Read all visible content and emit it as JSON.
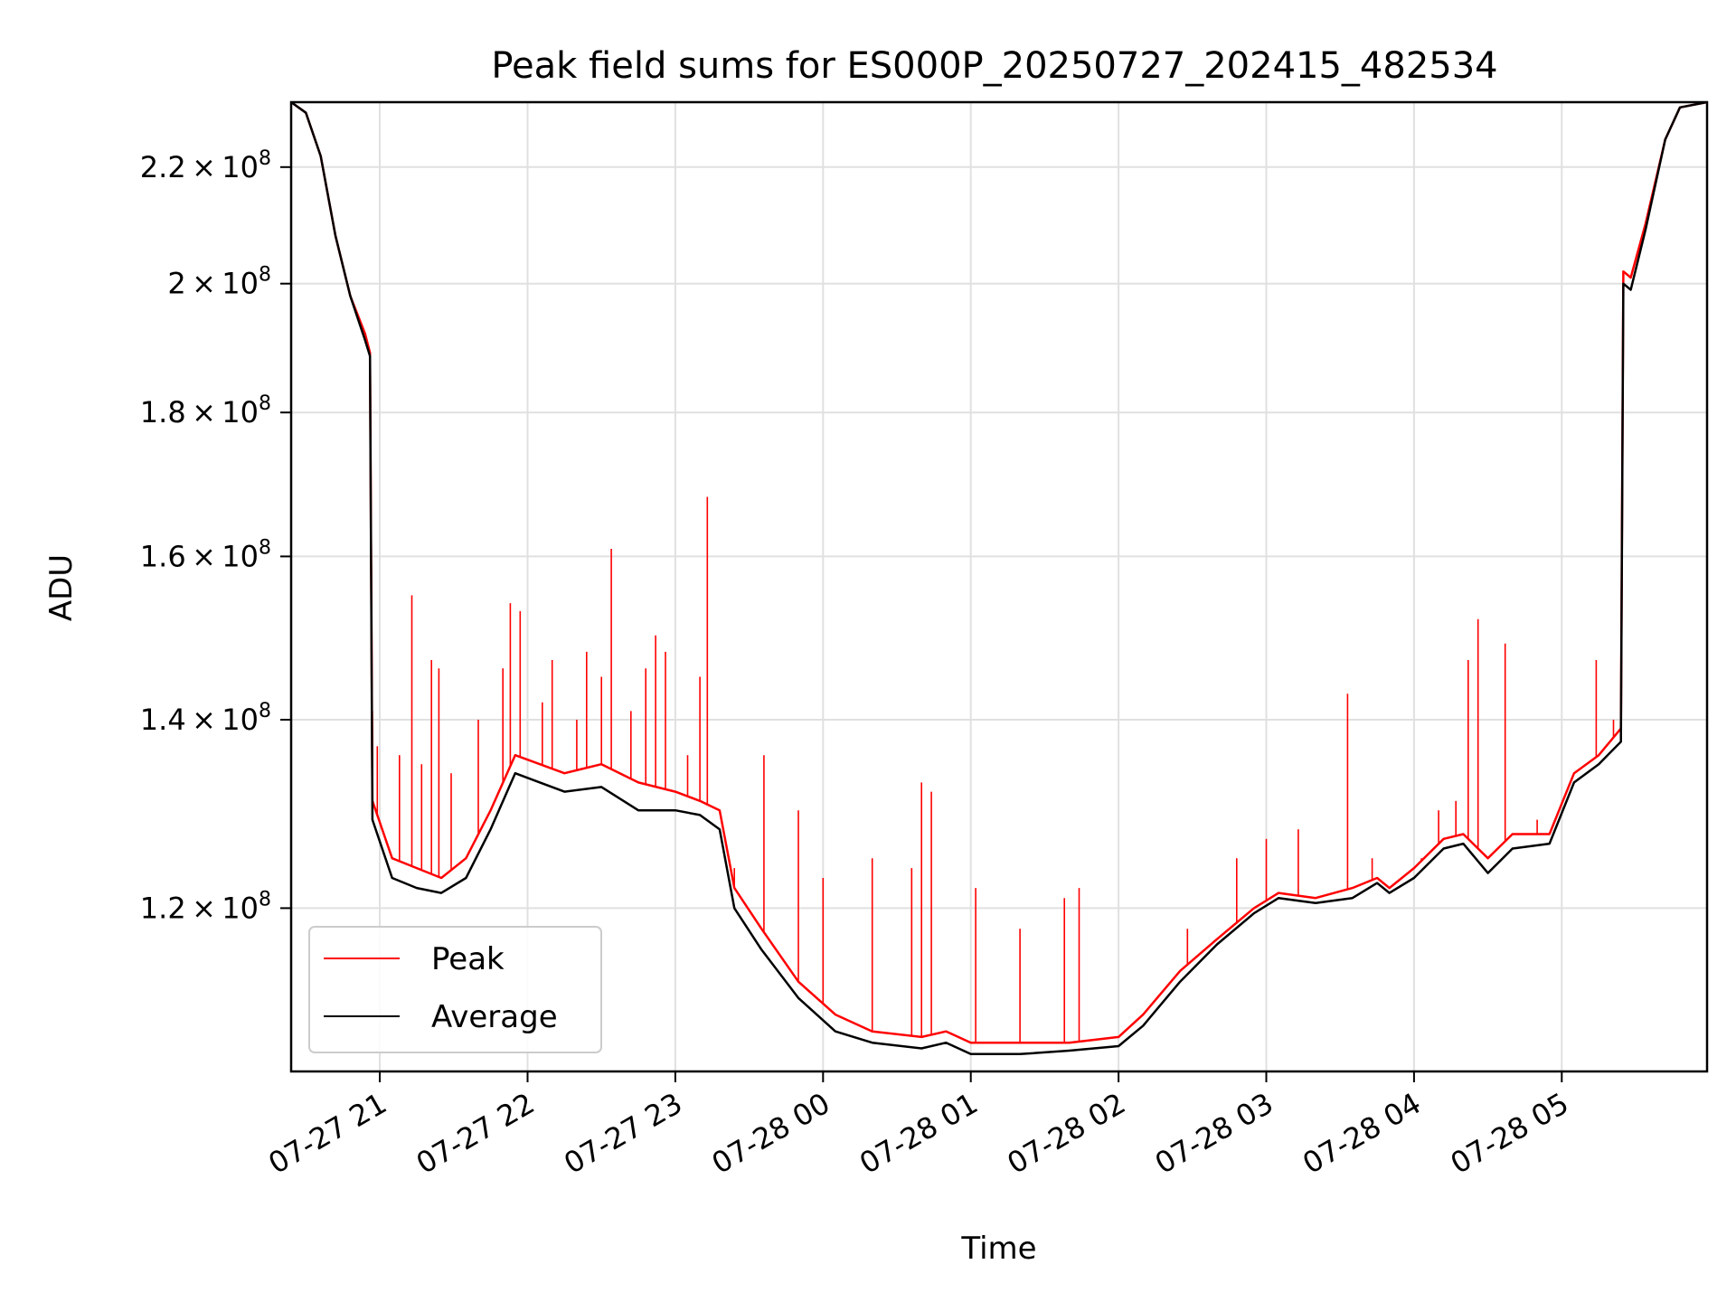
{
  "chart_data": {
    "type": "line",
    "title": "Peak field sums for ES000P_20250727_202415_482534",
    "xlabel": "Time",
    "ylabel": "ADU",
    "yscale": "log",
    "grid": true,
    "legend_position": "lower-left",
    "xlim": [
      "2025-07-27 20:24",
      "2025-07-28 05:59"
    ],
    "ylim": [
      105000000,
      232000000
    ],
    "x_ticks": [
      {
        "t": "2025-07-27 21:00",
        "label": "07-27 21"
      },
      {
        "t": "2025-07-27 22:00",
        "label": "07-27 22"
      },
      {
        "t": "2025-07-27 23:00",
        "label": "07-27 23"
      },
      {
        "t": "2025-07-28 00:00",
        "label": "07-28 00"
      },
      {
        "t": "2025-07-28 01:00",
        "label": "07-28 01"
      },
      {
        "t": "2025-07-28 02:00",
        "label": "07-28 02"
      },
      {
        "t": "2025-07-28 03:00",
        "label": "07-28 03"
      },
      {
        "t": "2025-07-28 04:00",
        "label": "07-28 04"
      },
      {
        "t": "2025-07-28 05:00",
        "label": "07-28 05"
      }
    ],
    "y_ticks": [
      {
        "value": 120000000,
        "mantissa": "1.2",
        "exponent": "8"
      },
      {
        "value": 140000000,
        "mantissa": "1.4",
        "exponent": "8"
      },
      {
        "value": 160000000,
        "mantissa": "1.6",
        "exponent": "8"
      },
      {
        "value": 180000000,
        "mantissa": "1.8",
        "exponent": "8"
      },
      {
        "value": 200000000,
        "mantissa": "2",
        "exponent": "8"
      },
      {
        "value": 220000000,
        "mantissa": "2.2",
        "exponent": "8"
      }
    ],
    "series": [
      {
        "name": "Peak",
        "color": "#ff0000",
        "points": [
          [
            "2025-07-27 20:24",
            232000000
          ],
          [
            "2025-07-27 20:30",
            230000000
          ],
          [
            "2025-07-27 20:36",
            222000000
          ],
          [
            "2025-07-27 20:42",
            208000000
          ],
          [
            "2025-07-27 20:48",
            198000000
          ],
          [
            "2025-07-27 20:54",
            192000000
          ],
          [
            "2025-07-27 20:56",
            189000000
          ],
          [
            "2025-07-27 20:57",
            131000000
          ],
          [
            "2025-07-27 21:05",
            125000000
          ],
          [
            "2025-07-27 21:15",
            124000000
          ],
          [
            "2025-07-27 21:25",
            123000000
          ],
          [
            "2025-07-27 21:35",
            125000000
          ],
          [
            "2025-07-27 21:45",
            130000000
          ],
          [
            "2025-07-27 21:55",
            136000000
          ],
          [
            "2025-07-27 22:05",
            135000000
          ],
          [
            "2025-07-27 22:15",
            134000000
          ],
          [
            "2025-07-27 22:30",
            135000000
          ],
          [
            "2025-07-27 22:45",
            133000000
          ],
          [
            "2025-07-27 23:00",
            132000000
          ],
          [
            "2025-07-27 23:10",
            131000000
          ],
          [
            "2025-07-27 23:18",
            130000000
          ],
          [
            "2025-07-27 23:24",
            122000000
          ],
          [
            "2025-07-27 23:35",
            118000000
          ],
          [
            "2025-07-27 23:50",
            113000000
          ],
          [
            "2025-07-28 00:05",
            110000000
          ],
          [
            "2025-07-28 00:20",
            108500000
          ],
          [
            "2025-07-28 00:40",
            108000000
          ],
          [
            "2025-07-28 00:50",
            108500000
          ],
          [
            "2025-07-28 01:00",
            107500000
          ],
          [
            "2025-07-28 01:20",
            107500000
          ],
          [
            "2025-07-28 01:40",
            107500000
          ],
          [
            "2025-07-28 02:00",
            108000000
          ],
          [
            "2025-07-28 02:10",
            110000000
          ],
          [
            "2025-07-28 02:25",
            114000000
          ],
          [
            "2025-07-28 02:40",
            117000000
          ],
          [
            "2025-07-28 02:55",
            120000000
          ],
          [
            "2025-07-28 03:05",
            121500000
          ],
          [
            "2025-07-28 03:20",
            121000000
          ],
          [
            "2025-07-28 03:35",
            122000000
          ],
          [
            "2025-07-28 03:45",
            123000000
          ],
          [
            "2025-07-28 03:50",
            122000000
          ],
          [
            "2025-07-28 04:00",
            124000000
          ],
          [
            "2025-07-28 04:12",
            127000000
          ],
          [
            "2025-07-28 04:20",
            127500000
          ],
          [
            "2025-07-28 04:30",
            125000000
          ],
          [
            "2025-07-28 04:40",
            127500000
          ],
          [
            "2025-07-28 04:55",
            127500000
          ],
          [
            "2025-07-28 05:05",
            134000000
          ],
          [
            "2025-07-28 05:15",
            136000000
          ],
          [
            "2025-07-28 05:24",
            139000000
          ],
          [
            "2025-07-28 05:25",
            202000000
          ],
          [
            "2025-07-28 05:28",
            201000000
          ],
          [
            "2025-07-28 05:34",
            210000000
          ],
          [
            "2025-07-28 05:42",
            225000000
          ],
          [
            "2025-07-28 05:48",
            231000000
          ],
          [
            "2025-07-28 05:59",
            232000000
          ]
        ],
        "spikes": [
          [
            "2025-07-27 20:57",
            141000000
          ],
          [
            "2025-07-27 20:59",
            137000000
          ],
          [
            "2025-07-27 21:08",
            136000000
          ],
          [
            "2025-07-27 21:13",
            155000000
          ],
          [
            "2025-07-27 21:17",
            135000000
          ],
          [
            "2025-07-27 21:21",
            147000000
          ],
          [
            "2025-07-27 21:24",
            146000000
          ],
          [
            "2025-07-27 21:29",
            134000000
          ],
          [
            "2025-07-27 21:40",
            140000000
          ],
          [
            "2025-07-27 21:50",
            146000000
          ],
          [
            "2025-07-27 21:53",
            154000000
          ],
          [
            "2025-07-27 21:57",
            153000000
          ],
          [
            "2025-07-27 22:06",
            142000000
          ],
          [
            "2025-07-27 22:10",
            147000000
          ],
          [
            "2025-07-27 22:20",
            140000000
          ],
          [
            "2025-07-27 22:24",
            148000000
          ],
          [
            "2025-07-27 22:30",
            145000000
          ],
          [
            "2025-07-27 22:34",
            161000000
          ],
          [
            "2025-07-27 22:42",
            141000000
          ],
          [
            "2025-07-27 22:48",
            146000000
          ],
          [
            "2025-07-27 22:52",
            150000000
          ],
          [
            "2025-07-27 22:56",
            148000000
          ],
          [
            "2025-07-27 23:05",
            136000000
          ],
          [
            "2025-07-27 23:10",
            145000000
          ],
          [
            "2025-07-27 23:13",
            168000000
          ],
          [
            "2025-07-27 23:24",
            124000000
          ],
          [
            "2025-07-27 23:36",
            136000000
          ],
          [
            "2025-07-27 23:50",
            130000000
          ],
          [
            "2025-07-28 00:00",
            123000000
          ],
          [
            "2025-07-28 00:20",
            125000000
          ],
          [
            "2025-07-28 00:36",
            124000000
          ],
          [
            "2025-07-28 00:40",
            133000000
          ],
          [
            "2025-07-28 00:44",
            132000000
          ],
          [
            "2025-07-28 01:02",
            122000000
          ],
          [
            "2025-07-28 01:20",
            118000000
          ],
          [
            "2025-07-28 01:38",
            121000000
          ],
          [
            "2025-07-28 01:44",
            122000000
          ],
          [
            "2025-07-28 02:28",
            118000000
          ],
          [
            "2025-07-28 02:48",
            125000000
          ],
          [
            "2025-07-28 03:00",
            127000000
          ],
          [
            "2025-07-28 03:13",
            128000000
          ],
          [
            "2025-07-28 03:33",
            143000000
          ],
          [
            "2025-07-28 03:43",
            125000000
          ],
          [
            "2025-07-28 04:03",
            125000000
          ],
          [
            "2025-07-28 04:10",
            130000000
          ],
          [
            "2025-07-28 04:17",
            131000000
          ],
          [
            "2025-07-28 04:22",
            147000000
          ],
          [
            "2025-07-28 04:26",
            152000000
          ],
          [
            "2025-07-28 04:37",
            149000000
          ],
          [
            "2025-07-28 04:50",
            129000000
          ],
          [
            "2025-07-28 05:14",
            147000000
          ],
          [
            "2025-07-28 05:21",
            140000000
          ]
        ]
      },
      {
        "name": "Average",
        "color": "#000000",
        "points": [
          [
            "2025-07-27 20:24",
            232000000
          ],
          [
            "2025-07-27 20:30",
            230000000
          ],
          [
            "2025-07-27 20:36",
            222000000
          ],
          [
            "2025-07-27 20:42",
            208000000
          ],
          [
            "2025-07-27 20:48",
            198000000
          ],
          [
            "2025-07-27 20:54",
            191000000
          ],
          [
            "2025-07-27 20:56",
            188500000
          ],
          [
            "2025-07-27 20:57",
            129000000
          ],
          [
            "2025-07-27 21:05",
            123000000
          ],
          [
            "2025-07-27 21:15",
            122000000
          ],
          [
            "2025-07-27 21:25",
            121500000
          ],
          [
            "2025-07-27 21:35",
            123000000
          ],
          [
            "2025-07-27 21:45",
            128000000
          ],
          [
            "2025-07-27 21:55",
            134000000
          ],
          [
            "2025-07-27 22:05",
            133000000
          ],
          [
            "2025-07-27 22:15",
            132000000
          ],
          [
            "2025-07-27 22:30",
            132500000
          ],
          [
            "2025-07-27 22:45",
            130000000
          ],
          [
            "2025-07-27 23:00",
            130000000
          ],
          [
            "2025-07-27 23:10",
            129500000
          ],
          [
            "2025-07-27 23:18",
            128000000
          ],
          [
            "2025-07-27 23:24",
            120000000
          ],
          [
            "2025-07-27 23:35",
            116000000
          ],
          [
            "2025-07-27 23:50",
            111500000
          ],
          [
            "2025-07-28 00:05",
            108500000
          ],
          [
            "2025-07-28 00:20",
            107500000
          ],
          [
            "2025-07-28 00:40",
            107000000
          ],
          [
            "2025-07-28 00:50",
            107500000
          ],
          [
            "2025-07-28 01:00",
            106500000
          ],
          [
            "2025-07-28 01:20",
            106500000
          ],
          [
            "2025-07-28 01:40",
            106800000
          ],
          [
            "2025-07-28 02:00",
            107200000
          ],
          [
            "2025-07-28 02:10",
            109000000
          ],
          [
            "2025-07-28 02:25",
            113000000
          ],
          [
            "2025-07-28 02:40",
            116500000
          ],
          [
            "2025-07-28 02:55",
            119500000
          ],
          [
            "2025-07-28 03:05",
            121000000
          ],
          [
            "2025-07-28 03:20",
            120500000
          ],
          [
            "2025-07-28 03:35",
            121000000
          ],
          [
            "2025-07-28 03:45",
            122500000
          ],
          [
            "2025-07-28 03:50",
            121500000
          ],
          [
            "2025-07-28 04:00",
            123000000
          ],
          [
            "2025-07-28 04:12",
            126000000
          ],
          [
            "2025-07-28 04:20",
            126500000
          ],
          [
            "2025-07-28 04:30",
            123500000
          ],
          [
            "2025-07-28 04:40",
            126000000
          ],
          [
            "2025-07-28 04:55",
            126500000
          ],
          [
            "2025-07-28 05:05",
            133000000
          ],
          [
            "2025-07-28 05:15",
            135000000
          ],
          [
            "2025-07-28 05:24",
            137500000
          ],
          [
            "2025-07-28 05:25",
            200000000
          ],
          [
            "2025-07-28 05:28",
            199000000
          ],
          [
            "2025-07-28 05:34",
            209000000
          ],
          [
            "2025-07-28 05:42",
            225000000
          ],
          [
            "2025-07-28 05:48",
            231000000
          ],
          [
            "2025-07-28 05:59",
            232000000
          ]
        ]
      }
    ]
  }
}
